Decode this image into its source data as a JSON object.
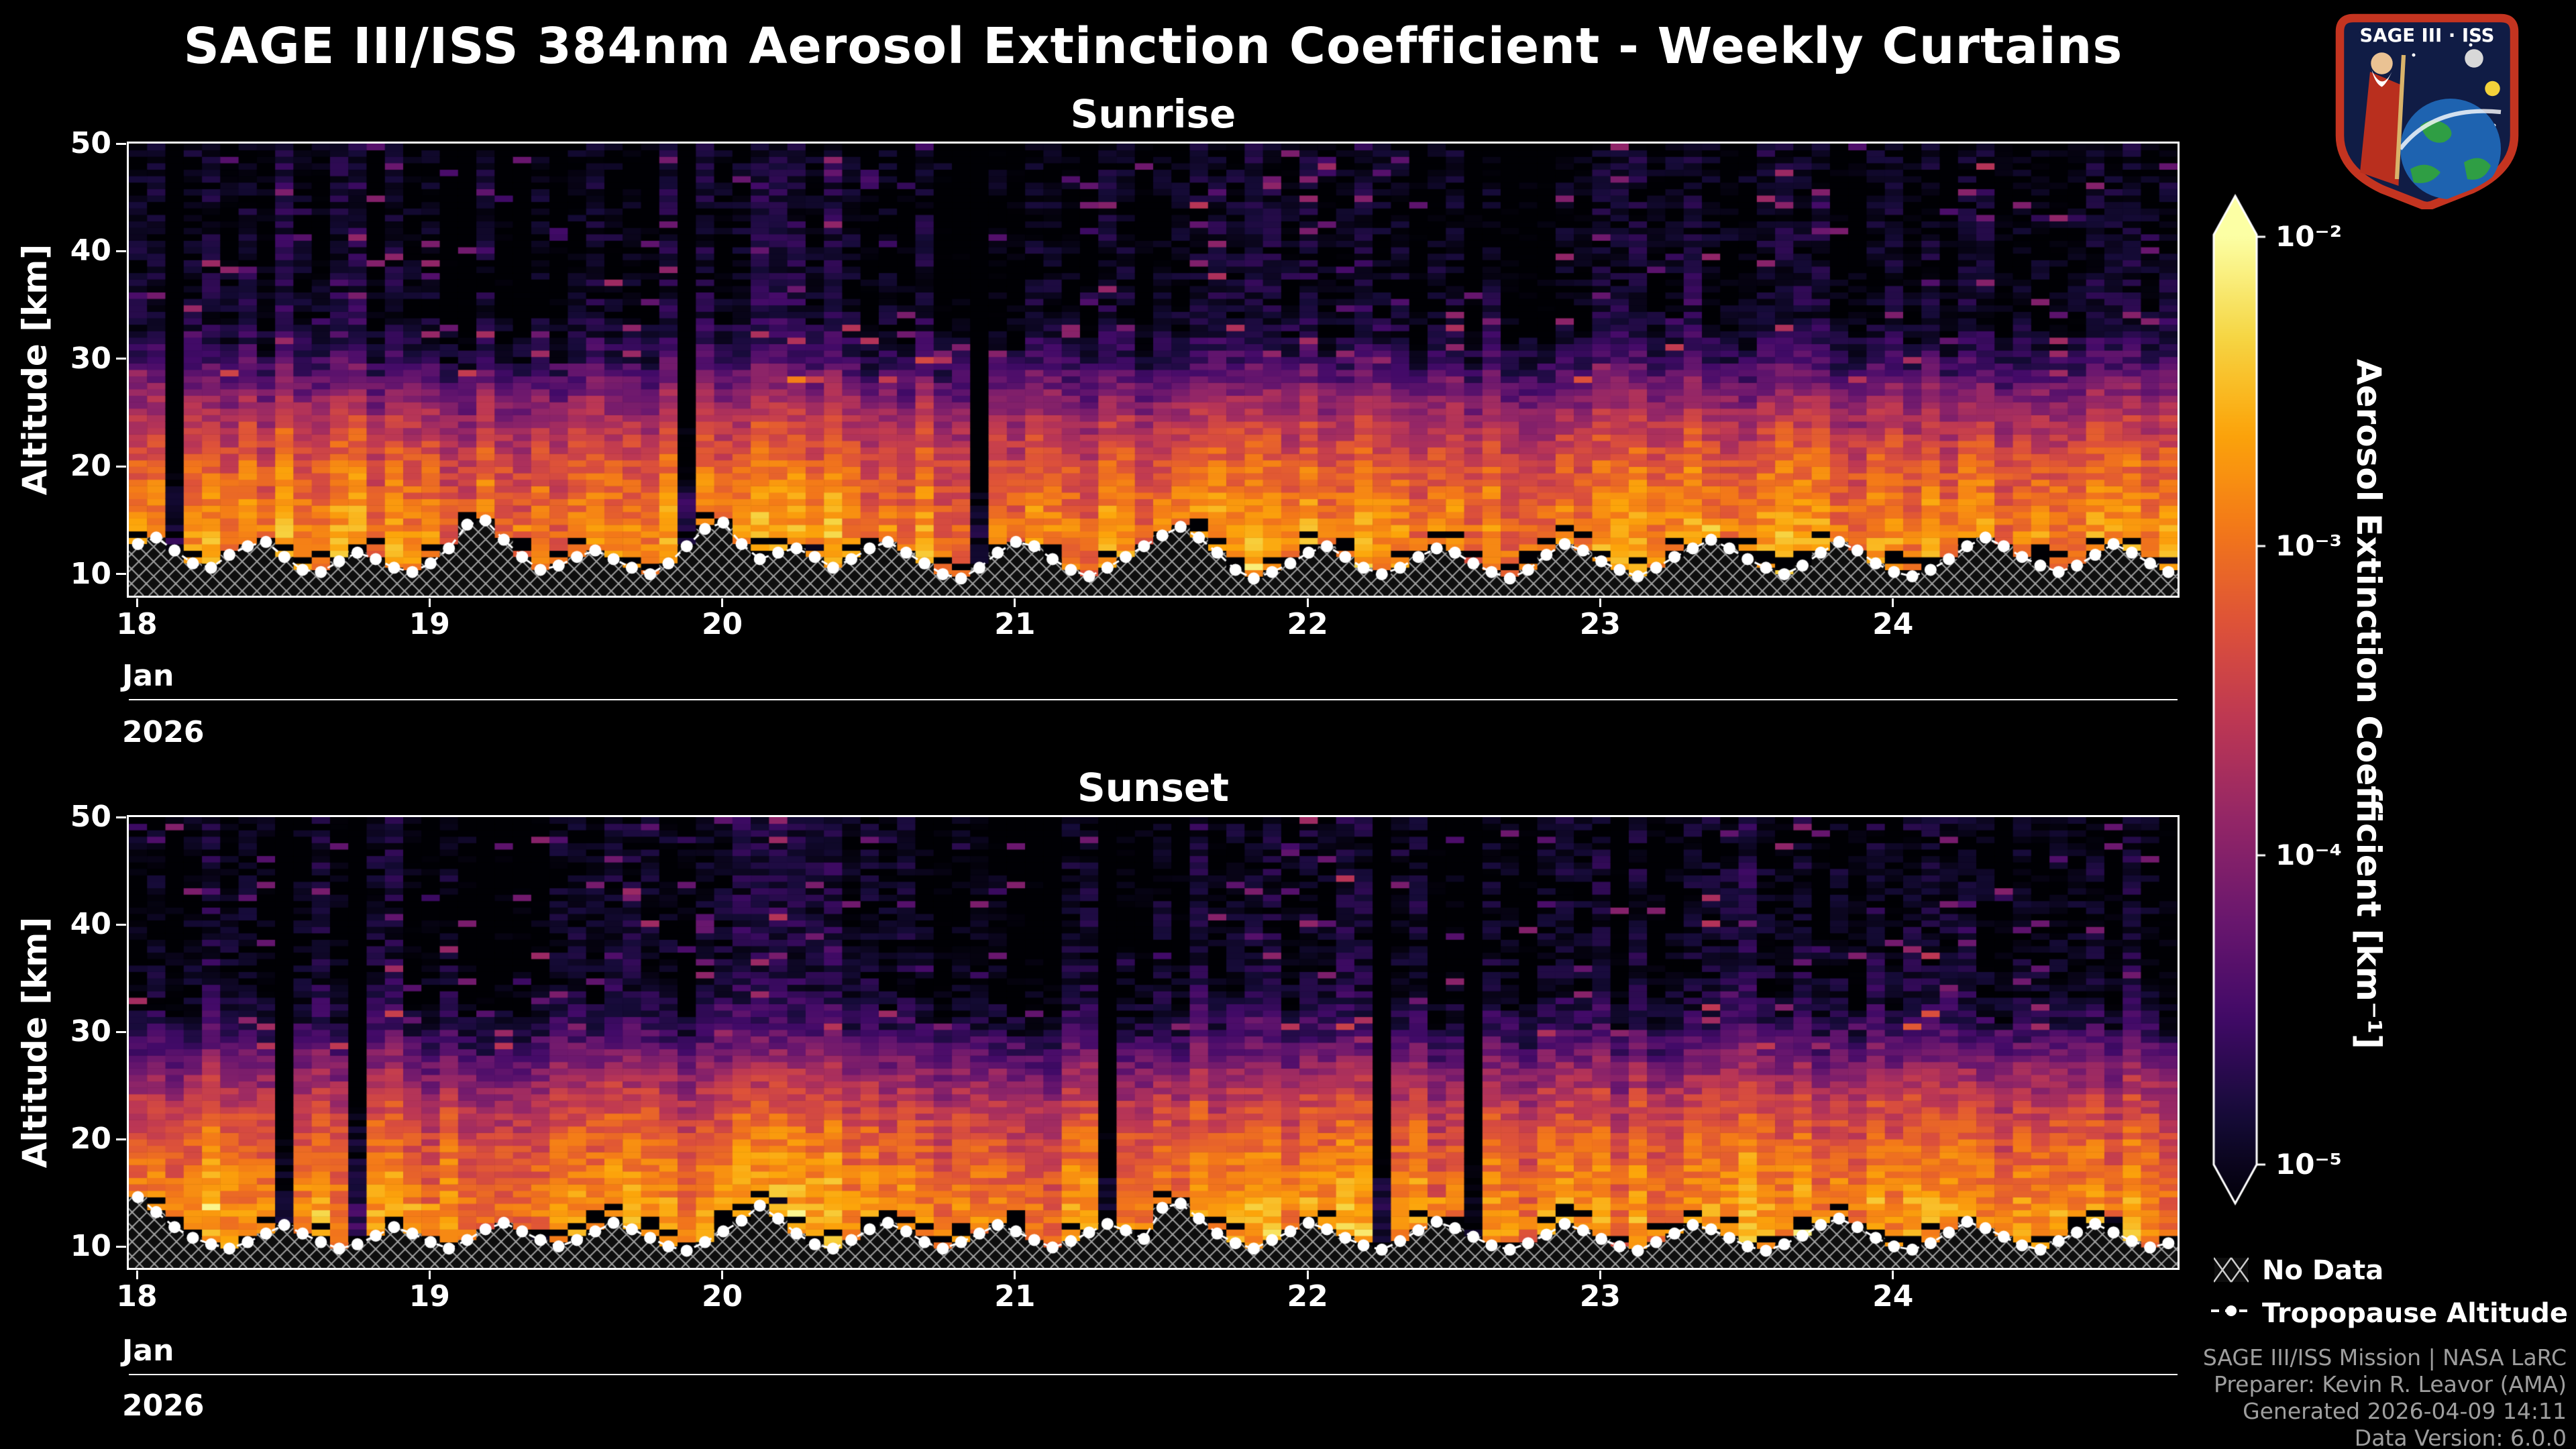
{
  "header": {
    "title": "SAGE III/ISS 384nm Aerosol Extinction Coefficient - Weekly Curtains",
    "logo_text": "SAGE III · ISS"
  },
  "chart_data": {
    "type": "heatmap",
    "title": "SAGE III/ISS 384nm Aerosol Extinction Coefficient - Weekly Curtains",
    "panels": [
      {
        "title": "Sunrise",
        "seed": 42,
        "tropopause_km": [
          12.8,
          13.4,
          12.2,
          11.0,
          10.6,
          11.8,
          12.6,
          13.0,
          11.6,
          10.4,
          10.2,
          11.2,
          12.0,
          11.4,
          10.6,
          10.2,
          11.0,
          12.4,
          14.6,
          15.0,
          13.2,
          11.6,
          10.4,
          10.8,
          11.6,
          12.2,
          11.4,
          10.6,
          10.0,
          11.0,
          12.6,
          14.2,
          14.8,
          12.8,
          11.4,
          12.0,
          12.4,
          11.6,
          10.6,
          11.4,
          12.4,
          13.0,
          12.0,
          11.0,
          10.0,
          9.6,
          10.6,
          12.0,
          13.0,
          12.6,
          11.4,
          10.4,
          9.8,
          10.6,
          11.6,
          12.6,
          13.6,
          14.4,
          13.4,
          12.0,
          10.4,
          9.6,
          10.2,
          11.0,
          12.0,
          12.6,
          11.6,
          10.6,
          10.0,
          10.6,
          11.6,
          12.4,
          12.0,
          11.0,
          10.2,
          9.6,
          10.4,
          11.8,
          12.8,
          12.2,
          11.2,
          10.4,
          9.8,
          10.6,
          11.6,
          12.4,
          13.2,
          12.4,
          11.4,
          10.6,
          10.0,
          10.8,
          12.0,
          13.0,
          12.2,
          11.0,
          10.2,
          9.8,
          10.4,
          11.4,
          12.6,
          13.4,
          12.6,
          11.6,
          10.8,
          10.2,
          10.8,
          11.8,
          12.8,
          12.0,
          11.0,
          10.2
        ]
      },
      {
        "title": "Sunset",
        "seed": 77,
        "tropopause_km": [
          14.6,
          13.2,
          11.8,
          10.8,
          10.2,
          9.8,
          10.4,
          11.2,
          12.0,
          11.2,
          10.4,
          9.8,
          10.2,
          11.0,
          11.8,
          11.2,
          10.4,
          9.8,
          10.6,
          11.6,
          12.2,
          11.4,
          10.6,
          10.0,
          10.6,
          11.4,
          12.2,
          11.6,
          10.8,
          10.0,
          9.6,
          10.4,
          11.4,
          12.4,
          13.8,
          12.6,
          11.2,
          10.2,
          9.8,
          10.6,
          11.6,
          12.2,
          11.4,
          10.4,
          9.8,
          10.4,
          11.2,
          12.0,
          11.4,
          10.6,
          9.9,
          10.5,
          11.3,
          12.1,
          11.5,
          10.7,
          13.6,
          14.0,
          12.6,
          11.2,
          10.3,
          9.8,
          10.6,
          11.4,
          12.2,
          11.6,
          10.8,
          10.1,
          9.7,
          10.5,
          11.5,
          12.3,
          11.7,
          10.9,
          10.1,
          9.7,
          10.3,
          11.1,
          12.1,
          11.5,
          10.7,
          10.0,
          9.6,
          10.4,
          11.2,
          12.0,
          11.6,
          10.8,
          10.0,
          9.6,
          10.2,
          11.0,
          12.0,
          12.6,
          11.8,
          10.8,
          10.0,
          9.7,
          10.3,
          11.3,
          12.3,
          11.7,
          10.9,
          10.1,
          9.7,
          10.5,
          11.3,
          12.1,
          11.3,
          10.5,
          9.9,
          10.3
        ]
      }
    ],
    "x_axis": {
      "tick_labels": [
        "18",
        "19",
        "20",
        "21",
        "22",
        "23",
        "24"
      ],
      "month_label": "Jan",
      "year_label": "2026"
    },
    "y_axis": {
      "label": "Altitude [km]",
      "tick_values": [
        10,
        20,
        30,
        40,
        50
      ],
      "range_km": [
        8,
        50
      ]
    },
    "colorbar": {
      "label": "Aerosol Extinction Coefficient [km⁻¹]",
      "tick_labels": [
        "10⁻²",
        "10⁻³",
        "10⁻⁴",
        "10⁻⁵"
      ],
      "scale": "log10",
      "range": [
        1e-05,
        0.01
      ],
      "colormap": "inferno",
      "colormap_stops": [
        [
          0.0,
          "#000004"
        ],
        [
          0.1,
          "#160b39"
        ],
        [
          0.2,
          "#420a68"
        ],
        [
          0.3,
          "#6a176e"
        ],
        [
          0.4,
          "#932667"
        ],
        [
          0.5,
          "#bc3754"
        ],
        [
          0.6,
          "#dd513a"
        ],
        [
          0.7,
          "#f37819"
        ],
        [
          0.8,
          "#fca50a"
        ],
        [
          0.9,
          "#f6d746"
        ],
        [
          1.0,
          "#fcffa4"
        ]
      ]
    },
    "mean_profile_log10": [
      [
        8,
        -2.95
      ],
      [
        11,
        -2.8
      ],
      [
        14,
        -2.85
      ],
      [
        17,
        -3.0
      ],
      [
        20,
        -3.2
      ],
      [
        23,
        -3.5
      ],
      [
        26,
        -3.9
      ],
      [
        28,
        -4.25
      ],
      [
        30,
        -4.6
      ],
      [
        32,
        -4.85
      ],
      [
        34,
        -5.0
      ],
      [
        38,
        -5.08
      ],
      [
        50,
        -5.12
      ]
    ],
    "display_log10_range": [
      -5.15,
      -2.0
    ]
  },
  "legend": {
    "no_data_label": "No Data",
    "tropopause_label": "Tropopause Altitude"
  },
  "footer": {
    "lines": [
      "SAGE III/ISS Mission | NASA LaRC",
      "Preparer: Kevin R. Leavor (AMA)",
      "Generated 2026-04-09 14:11",
      "Data Version: 6.0.0"
    ]
  }
}
